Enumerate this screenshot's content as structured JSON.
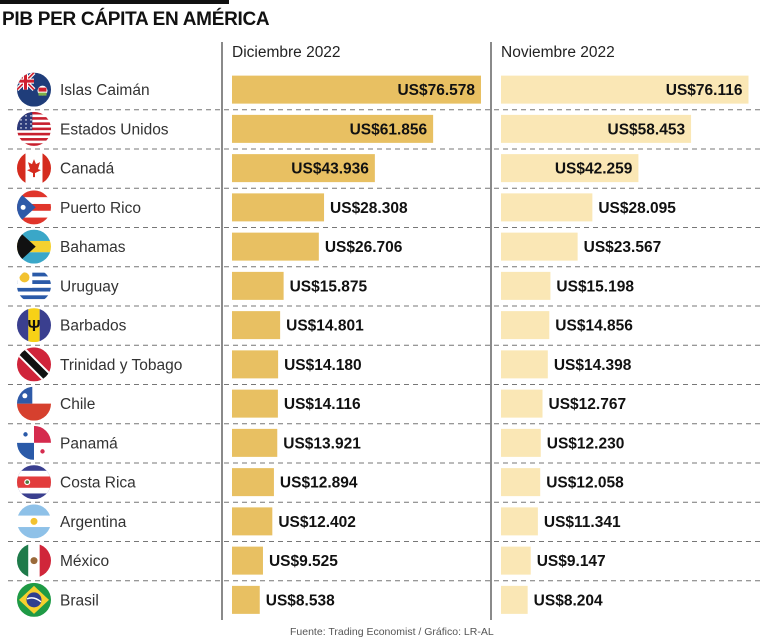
{
  "title": "PIB PER CÁPITA EN AMÉRICA",
  "footer": "Fuente: Trading Economist / Gráfico: LR-AL",
  "colors": {
    "december_bar": "#E8C062",
    "november_bar": "#FAE7B5",
    "divider": "#8a8a8a",
    "dash": "#777777"
  },
  "chart_data": {
    "type": "bar",
    "orientation": "horizontal",
    "title": "PIB PER CÁPITA EN AMÉRICA",
    "xlabel": "",
    "ylabel": "",
    "unit": "US$",
    "grid": false,
    "legend": "column-headers-top",
    "categories": [
      "Islas Caimán",
      "Estados Unidos",
      "Canadá",
      "Puerto Rico",
      "Bahamas",
      "Uruguay",
      "Barbados",
      "Trinidad y Tobago",
      "Chile",
      "Panamá",
      "Costa Rica",
      "Argentina",
      "México",
      "Brasil"
    ],
    "flags": [
      "cayman-islands-flag",
      "usa-flag",
      "canada-flag",
      "puerto-rico-flag",
      "bahamas-flag",
      "uruguay-flag",
      "barbados-flag",
      "trinidad-tobago-flag",
      "chile-flag",
      "panama-flag",
      "costa-rica-flag",
      "argentina-flag",
      "mexico-flag",
      "brazil-flag"
    ],
    "series": [
      {
        "name": "Diciembre 2022",
        "values": [
          76578,
          61856,
          43936,
          28308,
          26706,
          15875,
          14801,
          14180,
          14116,
          13921,
          12894,
          12402,
          9525,
          8538
        ],
        "labels": [
          "US$76.578",
          "US$61.856",
          "US$43.936",
          "US$28.308",
          "US$26.706",
          "US$15.875",
          "US$14.801",
          "US$14.180",
          "US$14.116",
          "US$13.921",
          "US$12.894",
          "US$12.402",
          "US$9.525",
          "US$8.538"
        ]
      },
      {
        "name": "Noviembre 2022",
        "values": [
          76116,
          58453,
          42259,
          28095,
          23567,
          15198,
          14856,
          14398,
          12767,
          12230,
          12058,
          11341,
          9147,
          8204
        ],
        "labels": [
          "US$76.116",
          "US$58.453",
          "US$42.259",
          "US$28.095",
          "US$23.567",
          "US$15.198",
          "US$14.856",
          "US$14.398",
          "US$12.767",
          "US$12.230",
          "US$12.058",
          "US$11.341",
          "US$9.147",
          "US$8.204"
        ]
      }
    ],
    "xlim": [
      0,
      76578
    ]
  }
}
